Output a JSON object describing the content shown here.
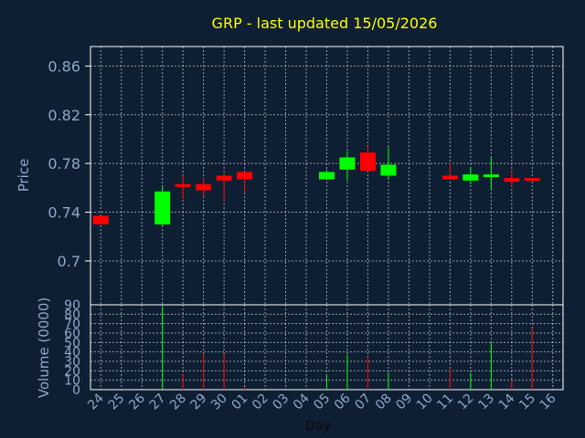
{
  "chart_data": {
    "type": "candlestick",
    "title": "GRP - last updated 15/05/2026",
    "xlabel": "Day",
    "price_axis": {
      "label": "Price",
      "ylim": [
        0.664,
        0.876
      ],
      "ticks": [
        "0.86",
        "0.82",
        "0.78",
        "0.74",
        "0.7"
      ]
    },
    "volume_axis": {
      "label": "Volume (0000)",
      "ylim": [
        0,
        90
      ],
      "ticks": [
        "90",
        "80",
        "70",
        "60",
        "50",
        "40",
        "30",
        "20",
        "10",
        "0"
      ]
    },
    "x_ticks": [
      "24",
      "25",
      "26",
      "27",
      "28",
      "29",
      "30",
      "01",
      "02",
      "03",
      "04",
      "05",
      "06",
      "07",
      "08",
      "09",
      "10",
      "11",
      "12",
      "13",
      "14",
      "15",
      "16"
    ],
    "grid": true,
    "colors": {
      "up": "#00ff00",
      "down": "#ff0000",
      "background": "#0f1f33",
      "grid": "#ffffff",
      "title": "#ffff00",
      "axis_text": "#8ea6c8"
    },
    "candles": [
      {
        "day": "24",
        "open": 0.737,
        "high": 0.737,
        "low": 0.73,
        "close": 0.73,
        "volume": 0
      },
      {
        "day": "27",
        "open": 0.73,
        "high": 0.762,
        "low": 0.729,
        "close": 0.757,
        "volume": 88
      },
      {
        "day": "28",
        "open": 0.763,
        "high": 0.77,
        "low": 0.751,
        "close": 0.761,
        "volume": 17
      },
      {
        "day": "29",
        "open": 0.763,
        "high": 0.768,
        "low": 0.753,
        "close": 0.758,
        "volume": 38
      },
      {
        "day": "30",
        "open": 0.77,
        "high": 0.772,
        "low": 0.749,
        "close": 0.766,
        "volume": 38
      },
      {
        "day": "01",
        "open": 0.773,
        "high": 0.773,
        "low": 0.756,
        "close": 0.767,
        "volume": 3
      },
      {
        "day": "05",
        "open": 0.767,
        "high": 0.775,
        "low": 0.767,
        "close": 0.773,
        "volume": 15
      },
      {
        "day": "06",
        "open": 0.775,
        "high": 0.79,
        "low": 0.766,
        "close": 0.785,
        "volume": 37
      },
      {
        "day": "07",
        "open": 0.789,
        "high": 0.794,
        "low": 0.774,
        "close": 0.774,
        "volume": 35
      },
      {
        "day": "08",
        "open": 0.77,
        "high": 0.794,
        "low": 0.767,
        "close": 0.779,
        "volume": 18
      },
      {
        "day": "11",
        "open": 0.77,
        "high": 0.78,
        "low": 0.767,
        "close": 0.767,
        "volume": 22
      },
      {
        "day": "12",
        "open": 0.766,
        "high": 0.777,
        "low": 0.763,
        "close": 0.771,
        "volume": 18
      },
      {
        "day": "13",
        "open": 0.77,
        "high": 0.785,
        "low": 0.759,
        "close": 0.771,
        "volume": 50
      },
      {
        "day": "14",
        "open": 0.768,
        "high": 0.774,
        "low": 0.761,
        "close": 0.765,
        "volume": 10
      },
      {
        "day": "15",
        "open": 0.768,
        "high": 0.768,
        "low": 0.766,
        "close": 0.766,
        "volume": 65
      }
    ]
  }
}
